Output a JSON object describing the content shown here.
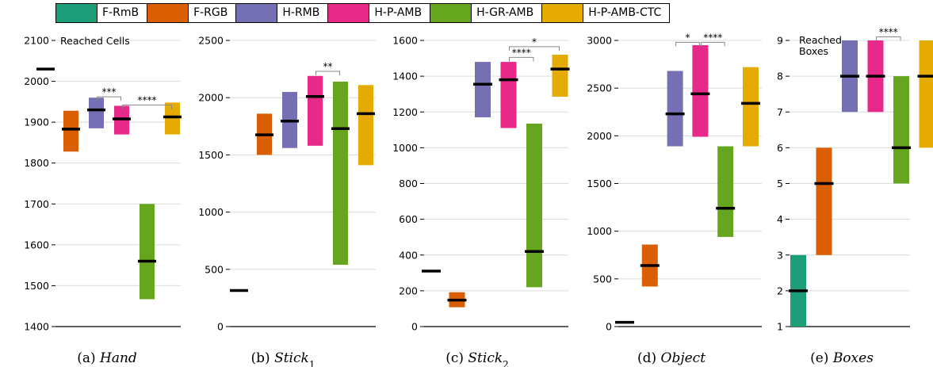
{
  "legend": [
    {
      "label": "F-RmB",
      "color": "#1b9e77"
    },
    {
      "label": "F-RGB",
      "color": "#d95f02"
    },
    {
      "label": "H-RMB",
      "color": "#7570b3"
    },
    {
      "label": "H-P-AMB",
      "color": "#e7298a"
    },
    {
      "label": "H-GR-AMB",
      "color": "#66a61e"
    },
    {
      "label": "H-P-AMB-CTC",
      "color": "#e6ab02"
    }
  ],
  "chart_data": [
    {
      "type": "range-bar",
      "caption_prefix": "(a) ",
      "caption_name": "Hand",
      "caption_sub": "",
      "annotation": "Reached Cells",
      "ylim": [
        1400,
        2100
      ],
      "yticks": [
        1400,
        1500,
        1600,
        1700,
        1800,
        1900,
        2000,
        2100
      ],
      "grid": true,
      "series": [
        {
          "name": "F-RmB",
          "low": 2030,
          "high": 2030,
          "median": 2030
        },
        {
          "name": "F-RGB",
          "low": 1828,
          "high": 1928,
          "median": 1883
        },
        {
          "name": "H-RMB",
          "low": 1885,
          "high": 1960,
          "median": 1930
        },
        {
          "name": "H-P-AMB",
          "low": 1870,
          "high": 1940,
          "median": 1908
        },
        {
          "name": "H-GR-AMB",
          "low": 1467,
          "high": 1700,
          "median": 1560
        },
        {
          "name": "H-P-AMB-CTC",
          "low": 1870,
          "high": 1948,
          "median": 1913
        }
      ],
      "significance": [
        {
          "from": 2,
          "to": 3,
          "label": "***",
          "y": 1962
        },
        {
          "from": 3,
          "to": 5,
          "label": "****",
          "y": 1942
        }
      ]
    },
    {
      "type": "range-bar",
      "caption_prefix": "(b) ",
      "caption_name": "Stick",
      "caption_sub": "1",
      "annotation": "",
      "ylim": [
        0,
        2500
      ],
      "yticks": [
        0,
        500,
        1000,
        1500,
        2000,
        2500
      ],
      "grid": true,
      "series": [
        {
          "name": "F-RmB",
          "low": 315,
          "high": 315,
          "median": 315
        },
        {
          "name": "F-RGB",
          "low": 1500,
          "high": 1860,
          "median": 1675
        },
        {
          "name": "H-RMB",
          "low": 1560,
          "high": 2050,
          "median": 1795
        },
        {
          "name": "H-P-AMB",
          "low": 1580,
          "high": 2190,
          "median": 2010
        },
        {
          "name": "H-GR-AMB",
          "low": 540,
          "high": 2140,
          "median": 1730
        },
        {
          "name": "H-P-AMB-CTC",
          "low": 1410,
          "high": 2110,
          "median": 1860
        }
      ],
      "significance": [
        {
          "from": 3,
          "to": 4,
          "label": "**",
          "y": 2230
        }
      ]
    },
    {
      "type": "range-bar",
      "caption_prefix": "(c) ",
      "caption_name": "Stick",
      "caption_sub": "2",
      "annotation": "",
      "ylim": [
        0,
        1600
      ],
      "yticks": [
        0,
        200,
        400,
        600,
        800,
        1000,
        1200,
        1400,
        1600
      ],
      "grid": true,
      "series": [
        {
          "name": "F-RmB",
          "low": 310,
          "high": 310,
          "median": 310
        },
        {
          "name": "F-RGB",
          "low": 108,
          "high": 192,
          "median": 148
        },
        {
          "name": "H-RMB",
          "low": 1170,
          "high": 1480,
          "median": 1355
        },
        {
          "name": "H-P-AMB",
          "low": 1110,
          "high": 1480,
          "median": 1380
        },
        {
          "name": "H-GR-AMB",
          "low": 220,
          "high": 1135,
          "median": 420
        },
        {
          "name": "H-P-AMB-CTC",
          "low": 1285,
          "high": 1520,
          "median": 1440
        }
      ],
      "significance": [
        {
          "from": 3,
          "to": 5,
          "label": "*",
          "y": 1565
        },
        {
          "from": 3,
          "to": 4,
          "label": "****",
          "y": 1505
        }
      ]
    },
    {
      "type": "range-bar",
      "caption_prefix": "(d) ",
      "caption_name": "Object",
      "caption_sub": "",
      "annotation": "",
      "ylim": [
        0,
        3000
      ],
      "yticks": [
        0,
        500,
        1000,
        1500,
        2000,
        2500,
        3000
      ],
      "grid": true,
      "series": [
        {
          "name": "F-RmB",
          "low": 45,
          "high": 45,
          "median": 45
        },
        {
          "name": "F-RGB",
          "low": 420,
          "high": 860,
          "median": 640
        },
        {
          "name": "H-RMB",
          "low": 1890,
          "high": 2680,
          "median": 2230
        },
        {
          "name": "H-P-AMB",
          "low": 1990,
          "high": 2950,
          "median": 2440
        },
        {
          "name": "H-GR-AMB",
          "low": 940,
          "high": 1890,
          "median": 1240
        },
        {
          "name": "H-P-AMB-CTC",
          "low": 1890,
          "high": 2720,
          "median": 2340
        }
      ],
      "significance": [
        {
          "from": 2,
          "to": 3,
          "label": "*",
          "y": 2980
        },
        {
          "from": 3,
          "to": 4,
          "label": "****",
          "y": 2980
        }
      ]
    },
    {
      "type": "range-bar",
      "caption_prefix": "(e) ",
      "caption_name": "Boxes",
      "caption_sub": "",
      "annotation": "Reached Boxes",
      "ylim": [
        1,
        9
      ],
      "yticks": [
        1,
        2,
        3,
        4,
        5,
        6,
        7,
        8,
        9
      ],
      "grid": true,
      "series": [
        {
          "name": "F-RmB",
          "low": 1,
          "high": 3,
          "median": 2
        },
        {
          "name": "F-RGB",
          "low": 3,
          "high": 6,
          "median": 5
        },
        {
          "name": "H-RMB",
          "low": 7,
          "high": 9,
          "median": 8
        },
        {
          "name": "H-P-AMB",
          "low": 7,
          "high": 9,
          "median": 8
        },
        {
          "name": "H-GR-AMB",
          "low": 5,
          "high": 8,
          "median": 6
        },
        {
          "name": "H-P-AMB-CTC",
          "low": 6,
          "high": 9,
          "median": 8
        }
      ],
      "significance": [
        {
          "from": 3,
          "to": 4,
          "label": "****",
          "y": 9.1
        }
      ]
    }
  ]
}
